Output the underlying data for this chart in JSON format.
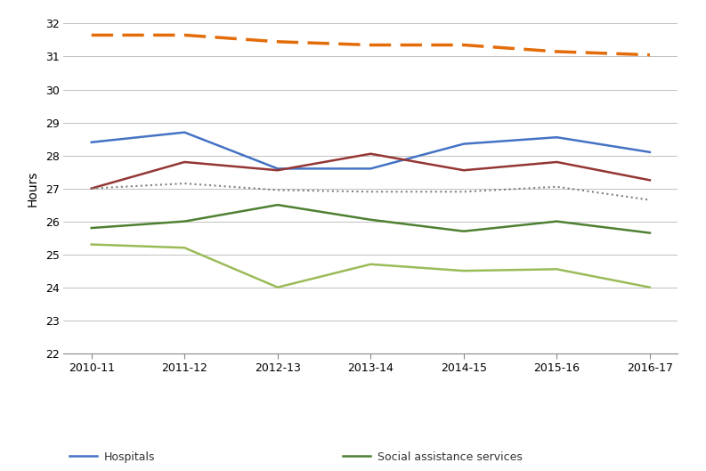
{
  "x_labels": [
    "2010-11",
    "2011-12",
    "2012-13",
    "2013-14",
    "2014-15",
    "2015-16",
    "2016-17"
  ],
  "x_values": [
    0,
    1,
    2,
    3,
    4,
    5,
    6
  ],
  "hospitals": [
    28.4,
    28.7,
    27.6,
    27.6,
    28.35,
    28.55,
    28.1
  ],
  "medical": [
    27.0,
    27.8,
    27.55,
    28.05,
    27.55,
    27.8,
    27.25
  ],
  "residential": [
    25.3,
    25.2,
    24.0,
    24.7,
    24.5,
    24.55,
    24.0
  ],
  "social": [
    25.8,
    26.0,
    26.5,
    26.05,
    25.7,
    26.0,
    25.65
  ],
  "total_health": [
    27.0,
    27.15,
    26.95,
    26.9,
    26.9,
    27.05,
    26.65
  ],
  "all_industries": [
    31.65,
    31.65,
    31.45,
    31.35,
    31.35,
    31.15,
    31.05
  ],
  "hospitals_color": "#4472C4",
  "medical_color": "#943634",
  "residential_color": "#9BBB59",
  "social_color": "#4E8032",
  "total_health_color": "#808080",
  "all_industries_color": "#E36C09",
  "ylabel": "Hours",
  "ylim": [
    22,
    32
  ],
  "yticks": [
    22,
    23,
    24,
    25,
    26,
    27,
    28,
    29,
    30,
    31,
    32
  ],
  "legend_fontsize": 9,
  "tick_fontsize": 9,
  "fig_width": 7.93,
  "fig_height": 5.29,
  "dpi": 100
}
